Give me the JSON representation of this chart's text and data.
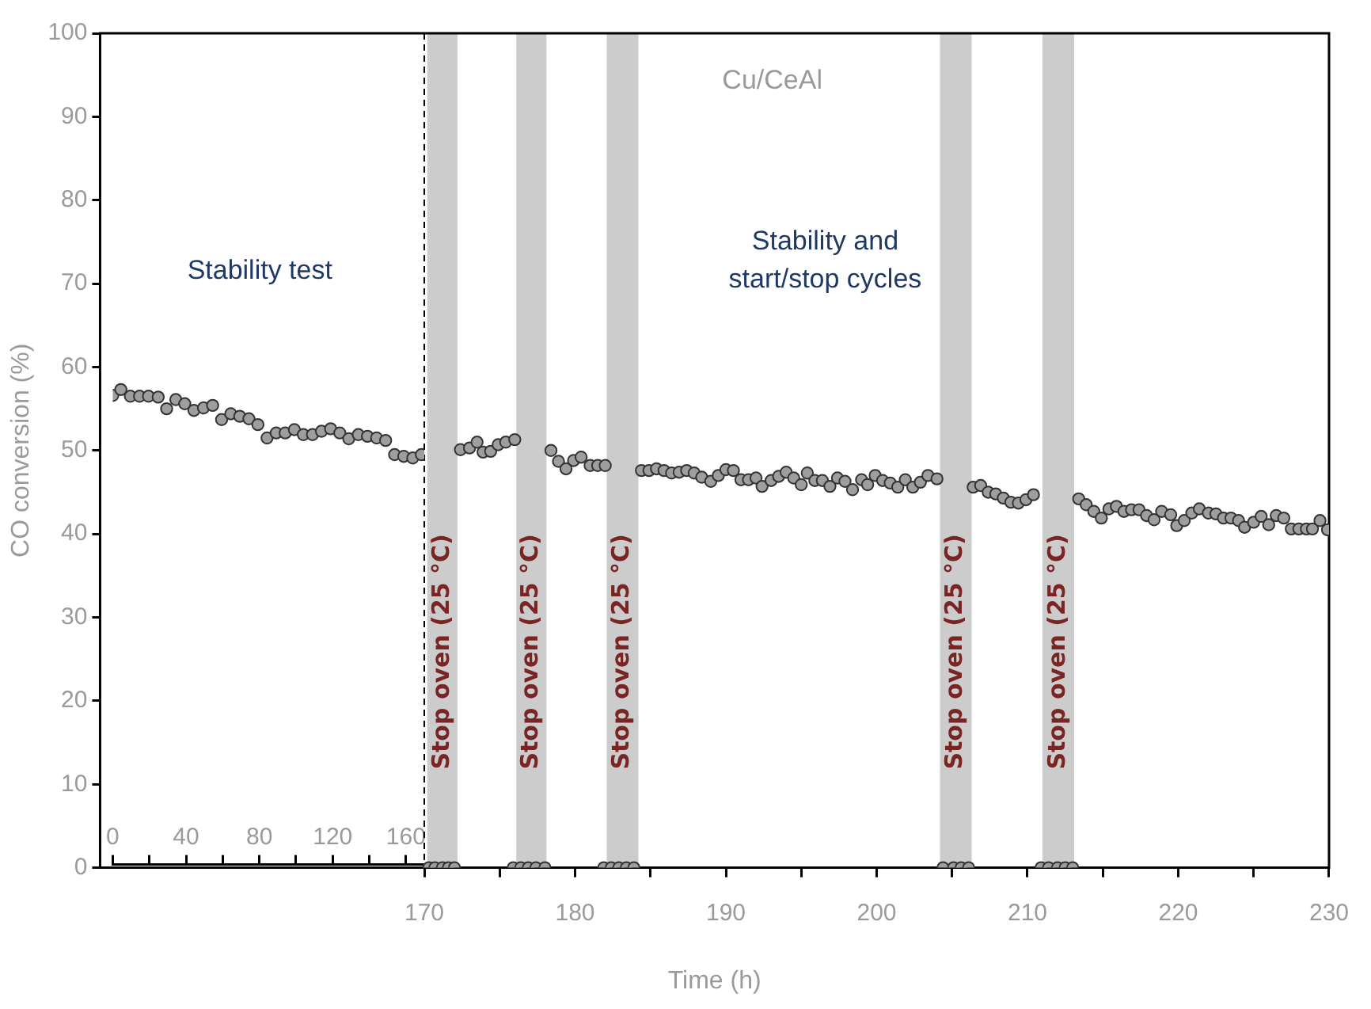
{
  "chart_data": {
    "type": "scatter",
    "xlabel": "Time (h)",
    "ylabel": "CO conversion (%)",
    "xlim": [
      148.5,
      230
    ],
    "xticks": [
      170,
      {
        "value": 175,
        "label": null
      },
      180,
      {
        "value": 185,
        "label": null
      },
      190,
      {
        "value": 195,
        "label": null
      },
      200,
      {
        "value": 205,
        "label": null
      },
      210,
      {
        "value": 215,
        "label": null
      },
      220,
      {
        "value": 225,
        "label": null
      },
      230
    ],
    "x2lim": [
      0,
      170
    ],
    "x2ticks": [
      0,
      {
        "value": 20,
        "label": null
      },
      40,
      {
        "value": 60,
        "label": null
      },
      80,
      {
        "value": 100,
        "label": null
      },
      120,
      {
        "value": 140,
        "label": null
      },
      160
    ],
    "ylim": [
      0,
      100
    ],
    "yticks": [
      0,
      10,
      20,
      30,
      40,
      50,
      60,
      70,
      80,
      90,
      100
    ],
    "grid": false,
    "legend": false,
    "marker": "circle",
    "series": [
      {
        "color": "#9e9e9e",
        "axis": "x2",
        "x": [
          0,
          4.4,
          9.6,
          14.6,
          19.5,
          24.8,
          29.4,
          34.4,
          39.3,
          44.3,
          49.5,
          54.5,
          59.4,
          64.4,
          69.3,
          74.3,
          79.2,
          84.2,
          89.2,
          94.1,
          99.1,
          104,
          109,
          113.9,
          118.9,
          123.9,
          128.8,
          134,
          139,
          144,
          148.9,
          153.8,
          158.8,
          163.7,
          168.4
        ],
        "values": [
          56.6,
          57.3,
          56.5,
          56.5,
          56.5,
          56.4,
          55,
          56.1,
          55.6,
          54.8,
          55.1,
          55.4,
          53.7,
          54.4,
          54.1,
          53.8,
          53.1,
          51.5,
          52.1,
          52.1,
          52.5,
          51.9,
          51.9,
          52.3,
          52.6,
          52.1,
          51.4,
          51.9,
          51.7,
          51.5,
          51.2,
          49.5,
          49.3,
          49.1,
          49.5
        ]
      },
      {
        "color": "#9e9e9e",
        "x": [
          170.3,
          170.7,
          171.2,
          171.6,
          172,
          172.4,
          173,
          173.5,
          173.9,
          174.4,
          174.9,
          175.4,
          176,
          175.9,
          176.4,
          176.9,
          177.4,
          178,
          178.4,
          178.9,
          179.4,
          179.9,
          180.4,
          181,
          181.5,
          182,
          181.9,
          182.4,
          182.9,
          183.4,
          183.9,
          184.4,
          184.9,
          185.4,
          185.9,
          186.4,
          186.9,
          187.4,
          187.9,
          188.4,
          189,
          189.5,
          190,
          190.5,
          191,
          191.5,
          192,
          192.4,
          193,
          193.5,
          194,
          194.5,
          195,
          195.4,
          195.9,
          196.4,
          196.9,
          197.4,
          197.9,
          198.4,
          199,
          199.4,
          199.9,
          200.4,
          200.9,
          201.4,
          201.9,
          202.4,
          202.9,
          203.4,
          204,
          204.4,
          205.1,
          205.6,
          206.1,
          206.4,
          206.9,
          207.4,
          207.9,
          208.4,
          208.9,
          209.4,
          209.9,
          210.4,
          210.9,
          211.4,
          212,
          212.5,
          213,
          213.4,
          213.9,
          214.4,
          214.9,
          215.4,
          215.9,
          216.4,
          216.9,
          217.4,
          217.9,
          218.4,
          218.9,
          219.5,
          219.9,
          220.4,
          220.9,
          221.4,
          222,
          222.5,
          223,
          223.5,
          224,
          224.4,
          225,
          225.5,
          226,
          226.5,
          227,
          227.5,
          228,
          228.5,
          228.9,
          229.4,
          229.9
        ],
        "values": [
          0,
          0,
          0,
          0,
          0,
          50.1,
          50.3,
          51,
          49.8,
          49.9,
          50.7,
          51,
          51.3,
          0,
          0,
          0,
          0,
          0,
          50,
          48.7,
          47.8,
          48.8,
          49.2,
          48.2,
          48.2,
          48.2,
          0,
          0,
          0,
          0,
          0,
          47.6,
          47.6,
          47.8,
          47.6,
          47.3,
          47.4,
          47.6,
          47.3,
          46.8,
          46.3,
          47,
          47.7,
          47.6,
          46.5,
          46.5,
          46.7,
          45.7,
          46.4,
          46.9,
          47.4,
          46.7,
          45.9,
          47.3,
          46.4,
          46.4,
          45.7,
          46.7,
          46.3,
          45.3,
          46.5,
          45.9,
          47,
          46.4,
          46.1,
          45.6,
          46.5,
          45.6,
          46.2,
          47,
          46.6,
          0,
          0,
          0,
          0,
          45.6,
          45.8,
          45,
          44.8,
          44.3,
          43.8,
          43.7,
          44.1,
          44.7,
          0,
          0,
          0,
          0,
          0,
          44.2,
          43.5,
          42.7,
          41.9,
          43,
          43.3,
          42.7,
          42.9,
          42.9,
          42.2,
          41.7,
          42.7,
          42.3,
          41,
          41.6,
          42.5,
          43,
          42.5,
          42.4,
          41.9,
          41.9,
          41.6,
          40.8,
          41.4,
          42.1,
          41.1,
          42.2,
          41.9,
          40.6,
          40.6,
          40.6,
          40.6,
          41.6,
          40.5
        ]
      }
    ],
    "ref_lines": [
      {
        "axis": "x",
        "value": 170,
        "label": null,
        "color": "#000000",
        "line_style": "dashed"
      }
    ],
    "bands": [
      {
        "axis": "x",
        "from": 170.2,
        "to": 172.2,
        "label": "Stop oven (25 °C)",
        "color": "#cccccc"
      },
      {
        "axis": "x",
        "from": 176.1,
        "to": 178.1,
        "label": "Stop oven (25 °C)",
        "color": "#cccccc"
      },
      {
        "axis": "x",
        "from": 182.1,
        "to": 184.2,
        "label": "Stop oven (25 °C)",
        "color": "#cccccc"
      },
      {
        "axis": "x",
        "from": 204.2,
        "to": 206.3,
        "label": "Stop oven (25 °C)",
        "color": "#cccccc"
      },
      {
        "axis": "x",
        "from": 211,
        "to": 213.1,
        "label": "Stop oven (25 °C)",
        "color": "#cccccc"
      }
    ],
    "annotations": [
      "Cu/CeAl",
      "Stability test",
      "Stability and\nstart/stop cycles"
    ]
  }
}
